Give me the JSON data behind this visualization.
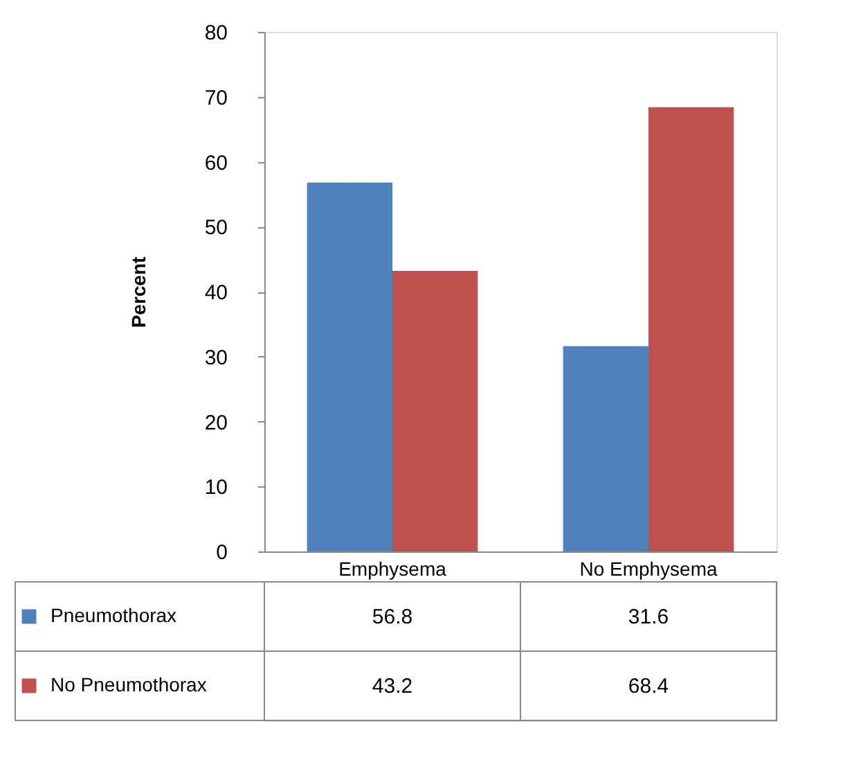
{
  "chart_data": {
    "type": "bar",
    "ylabel": "Percent",
    "categories": [
      "Emphysema",
      "No Emphysema"
    ],
    "series": [
      {
        "name": "Pneumothorax",
        "color": "#4f81bd",
        "values": [
          56.8,
          31.6
        ]
      },
      {
        "name": "No Pneumothorax",
        "color": "#c0504d",
        "values": [
          43.2,
          68.4
        ]
      }
    ],
    "ylim": [
      0,
      80
    ],
    "yticks": [
      0,
      10,
      20,
      30,
      40,
      50,
      60,
      70,
      80
    ],
    "grid": false,
    "legend": "bottom",
    "data_labels": true
  }
}
